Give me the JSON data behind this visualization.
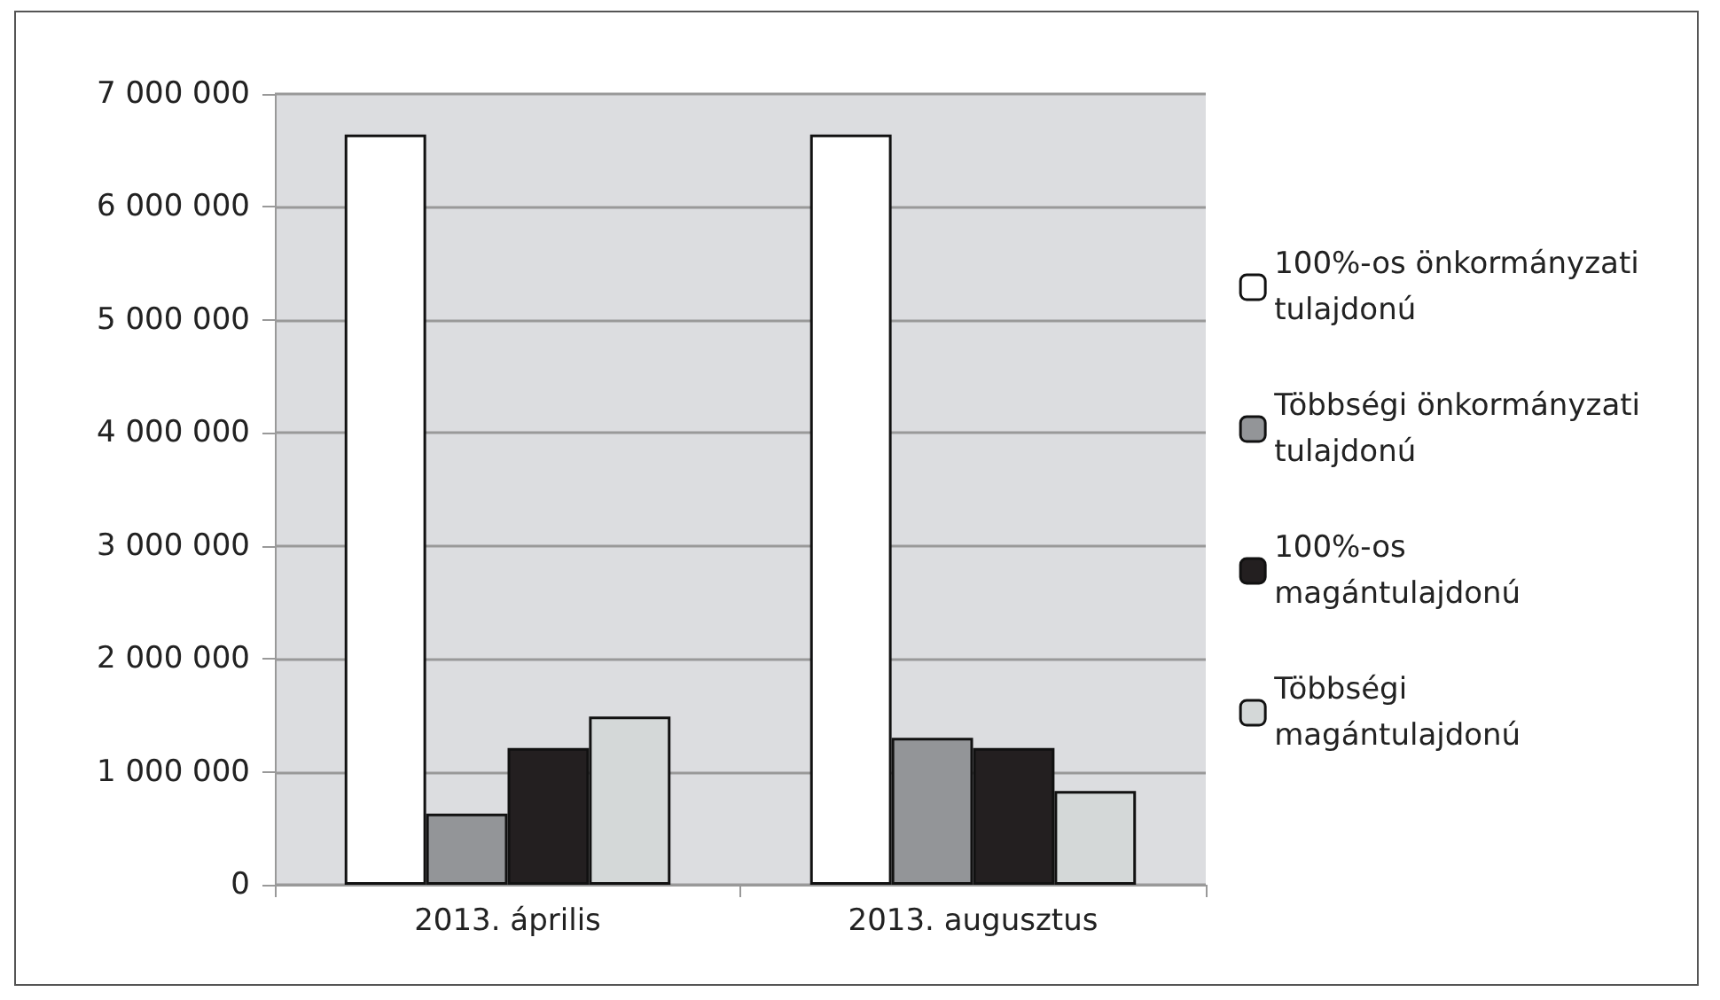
{
  "chart_data": {
    "type": "bar",
    "categories": [
      "2013. április",
      "2013. augusztus"
    ],
    "series": [
      {
        "name": "100%-os önkormányzati tulajdonú",
        "color": "#ffffff",
        "values": [
          6640000,
          6640000
        ]
      },
      {
        "name": "Többségi önkormányzati tulajdonú",
        "color": "#939598",
        "values": [
          630000,
          1300000
        ]
      },
      {
        "name": "100%-os magántulajdonú",
        "color": "#231f20",
        "values": [
          1210000,
          1210000
        ]
      },
      {
        "name": "Többségi magántulajdonú",
        "color": "#d4d8d8",
        "values": [
          1490000,
          830000
        ]
      }
    ],
    "ylim": [
      0,
      7000000
    ],
    "yticks": [
      {
        "value": 0,
        "label": "0"
      },
      {
        "value": 1000000,
        "label": "1 000 000"
      },
      {
        "value": 2000000,
        "label": "2 000 000"
      },
      {
        "value": 3000000,
        "label": "3 000 000"
      },
      {
        "value": 4000000,
        "label": "4 000 000"
      },
      {
        "value": 5000000,
        "label": "5 000 000"
      },
      {
        "value": 6000000,
        "label": "6 000 000"
      },
      {
        "value": 7000000,
        "label": "7 000 000"
      }
    ],
    "grid": "y",
    "legend": "right"
  }
}
